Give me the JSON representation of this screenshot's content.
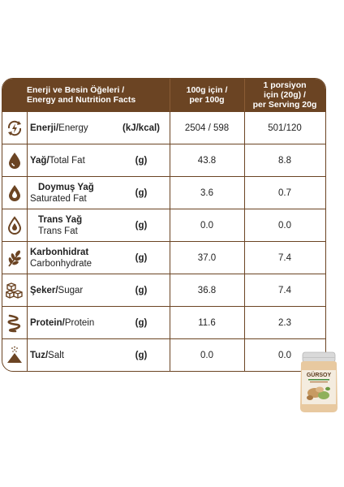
{
  "header": {
    "col1_line1": "Enerji ve Besin Öğeleri /",
    "col1_line2": "Energy and Nutrition Facts",
    "col2_line1": "100g için /",
    "col2_line2": "per 100g",
    "col3_line1": "1 porsiyon",
    "col3_line2": "için (20g) /",
    "col3_line3": "per Serving 20g"
  },
  "rows": [
    {
      "icon": "energy-icon",
      "tr": "Enerji/",
      "en": "Energy",
      "unit": "(kJ/kcal)",
      "per100": "2504 / 598",
      "serving": "501/120"
    },
    {
      "icon": "fat-drop-icon",
      "tr": "Yağ/",
      "en": "Total Fat",
      "unit": "(g)",
      "per100": "43.8",
      "serving": "8.8"
    },
    {
      "icon": "saturated-fat-icon",
      "tr": "Doymuş Yağ",
      "en": "Saturated Fat",
      "unit": "(g)",
      "per100": "3.6",
      "serving": "0.7"
    },
    {
      "icon": "trans-fat-icon",
      "tr": "Trans Yağ",
      "en": "Trans Fat",
      "unit": "(g)",
      "per100": "0.0",
      "serving": "0.0"
    },
    {
      "icon": "grain-icon",
      "tr": "Karbonhidrat",
      "en": "Carbonhydrate",
      "unit": "(g)",
      "per100": "37.0",
      "serving": "7.4"
    },
    {
      "icon": "sugar-cubes-icon",
      "tr": "Şeker/",
      "en": "Sugar",
      "unit": "(g)",
      "per100": "36.8",
      "serving": "7.4"
    },
    {
      "icon": "protein-icon",
      "tr": "Protein/",
      "en": "Protein",
      "unit": "(g)",
      "per100": "11.6",
      "serving": "2.3"
    },
    {
      "icon": "salt-icon",
      "tr": "Tuz/",
      "en": "Salt",
      "unit": "(g)",
      "per100": "0.0",
      "serving": "0.0"
    }
  ],
  "product": {
    "brand": "GÜRSOY",
    "colors": {
      "brown": "#6b4423",
      "lid": "#d9d9d9",
      "jar": "#e8c9a0",
      "label": "#f4ecdf"
    }
  }
}
